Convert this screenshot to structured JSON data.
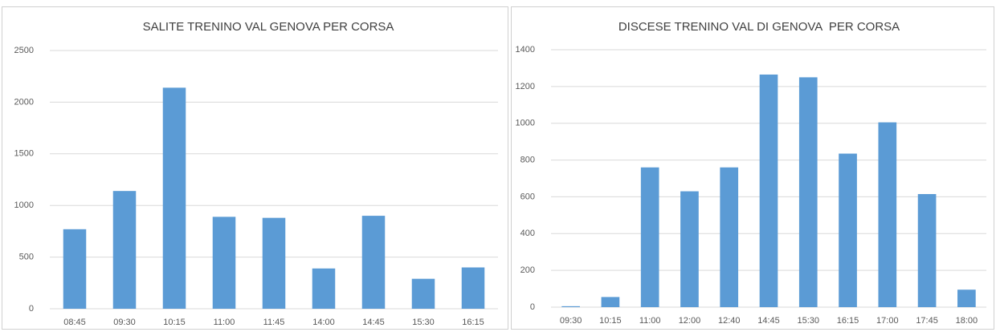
{
  "chart_data": [
    {
      "type": "bar",
      "title": "SALITE TRENINO VAL GENOVA PER CORSA",
      "categories": [
        "08:45",
        "09:30",
        "10:15",
        "11:00",
        "11:45",
        "14:00",
        "14:45",
        "15:30",
        "16:15"
      ],
      "values": [
        770,
        1140,
        2140,
        890,
        880,
        390,
        900,
        290,
        400
      ],
      "color": "#5b9bd5",
      "ylim": [
        0,
        2500
      ],
      "yticks": [
        0,
        500,
        1000,
        1500,
        2000,
        2500
      ],
      "grid": true
    },
    {
      "type": "bar",
      "title": "DISCESE TRENINO VAL DI GENOVA  PER CORSA",
      "categories": [
        "09:30",
        "10:15",
        "11:00",
        "12:00",
        "12:40",
        "14:45",
        "15:30",
        "16:15",
        "17:00",
        "17:45",
        "18:00"
      ],
      "values": [
        5,
        55,
        760,
        630,
        760,
        1265,
        1250,
        835,
        1005,
        615,
        95
      ],
      "color": "#5b9bd5",
      "ylim": [
        0,
        1400
      ],
      "yticks": [
        0,
        200,
        400,
        600,
        800,
        1000,
        1200,
        1400
      ],
      "grid": true
    }
  ]
}
